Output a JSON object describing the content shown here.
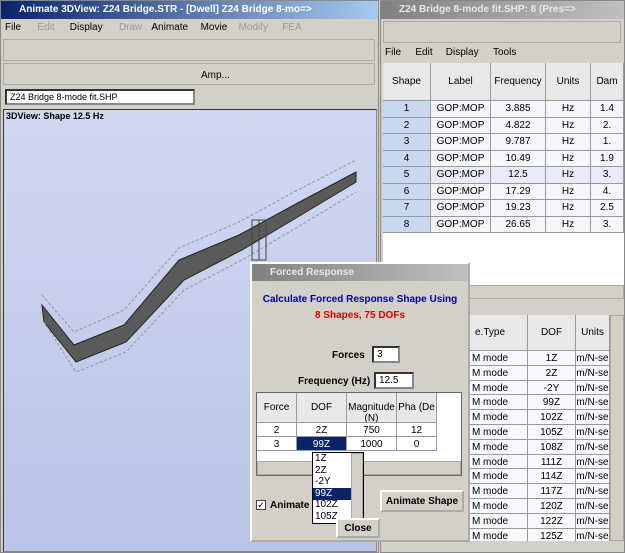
{
  "main_window": {
    "title": "Animate 3DView: Z24 Bridge.STR - [Dwell] Z24 Bridge 8-mo=>",
    "menu": [
      "File",
      "Edit",
      "Display",
      "Draw",
      "Animate",
      "Movie",
      "Modify",
      "FEA"
    ],
    "amp_dropdown": "Amp...",
    "file_dropdown": "Z24 Bridge 8-mode fit.SHP",
    "view_label": "3DView: Shape 12.5 Hz"
  },
  "shape_window": {
    "title": "Z24 Bridge 8-mode fit.SHP: 8 (Pres=>",
    "menu": [
      "File",
      "Edit",
      "Display",
      "Tools"
    ],
    "columns": [
      "Shape",
      "Label",
      "Frequency",
      "Units",
      "Dam"
    ],
    "rows": [
      [
        "1",
        "GOP:MOP",
        "3.885",
        "Hz",
        "1.4"
      ],
      [
        "2",
        "GOP:MOP",
        "4.822",
        "Hz",
        "2."
      ],
      [
        "3",
        "GOP:MOP",
        "9.787",
        "Hz",
        "1."
      ],
      [
        "4",
        "GOP:MOP",
        "10.49",
        "Hz",
        "1.9"
      ],
      [
        "5",
        "GOP:MOP",
        "12.5",
        "Hz",
        "3."
      ],
      [
        "6",
        "GOP:MOP",
        "17.29",
        "Hz",
        "4."
      ],
      [
        "7",
        "GOP:MOP",
        "19.23",
        "Hz",
        "2.5"
      ],
      [
        "8",
        "GOP:MOP",
        "26.65",
        "Hz",
        "3."
      ]
    ]
  },
  "dof_table": {
    "columns": [
      "e.Type",
      "DOF",
      "Units"
    ],
    "rows": [
      [
        "M mode",
        "1Z",
        "m/N-se"
      ],
      [
        "M mode",
        "2Z",
        "m/N-se"
      ],
      [
        "M mode",
        "-2Y",
        "m/N-se"
      ],
      [
        "M mode",
        "99Z",
        "m/N-se"
      ],
      [
        "M mode",
        "102Z",
        "m/N-se"
      ],
      [
        "M mode",
        "105Z",
        "m/N-se"
      ],
      [
        "M mode",
        "108Z",
        "m/N-se"
      ],
      [
        "M mode",
        "111Z",
        "m/N-se"
      ],
      [
        "M mode",
        "114Z",
        "m/N-se"
      ],
      [
        "M mode",
        "117Z",
        "m/N-se"
      ],
      [
        "M mode",
        "120Z",
        "m/N-se"
      ],
      [
        "M mode",
        "122Z",
        "m/N-se"
      ],
      [
        "M mode",
        "125Z",
        "m/N-se"
      ]
    ]
  },
  "dialog": {
    "title": "Forced Response",
    "heading": "Calculate Forced Response Shape Using",
    "subheading": "8 Shapes, 75 DOFs",
    "forces_label": "Forces",
    "forces_value": "3",
    "freq_label": "Frequency (Hz)",
    "freq_value": "12.5",
    "columns": [
      "Force",
      "DOF",
      "Magnitude (N)",
      "Pha (De"
    ],
    "rows": [
      [
        "2",
        "2Z",
        "750",
        "12"
      ],
      [
        "3",
        "99Z",
        "1000",
        "0"
      ]
    ],
    "dropdown_options": [
      "1Z",
      "2Z",
      "-2Y",
      "99Z",
      "102Z",
      "105Z"
    ],
    "animate_label": "Animate",
    "animate_button": "Animate Shape",
    "close_button": "Close"
  }
}
